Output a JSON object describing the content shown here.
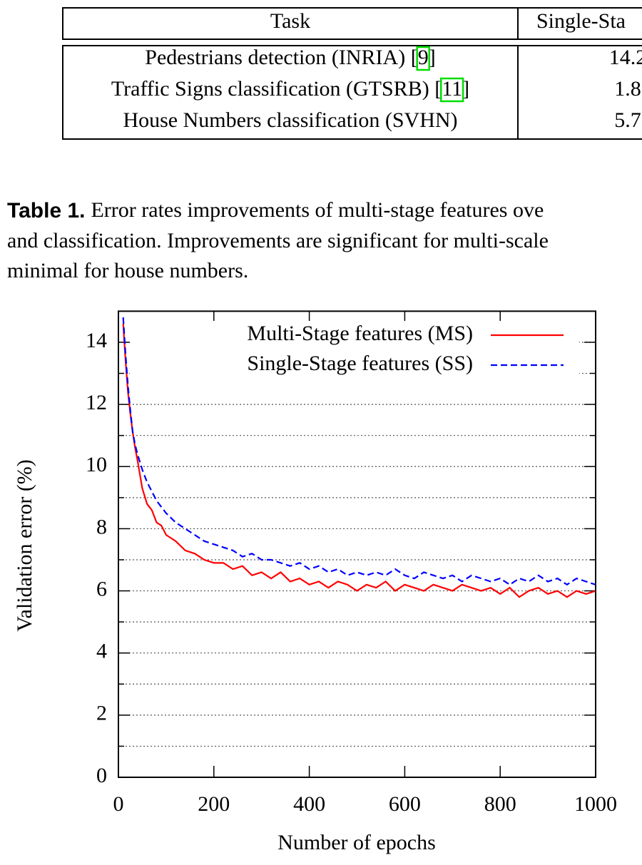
{
  "table": {
    "header": [
      "Task",
      "Single-Sta"
    ],
    "rows": [
      {
        "task": "Pedestrians detection (INRIA) [",
        "cite": "9",
        "after": "]",
        "value": "14.2"
      },
      {
        "task": "Traffic Signs classification (GTSRB) [",
        "cite": "11",
        "after": "]",
        "value": "1.8"
      },
      {
        "task": "House Numbers classification (SVHN)",
        "value": "5.7"
      }
    ]
  },
  "caption": {
    "label": "Table 1.",
    "lines": [
      "Error rates improvements of multi-stage features ove",
      "and classification. Improvements are significant for multi-scale",
      "minimal for house numbers."
    ]
  },
  "chart_data": {
    "type": "line",
    "xlabel": "Number of epochs",
    "ylabel": "Validation error (%)",
    "xlim": [
      0,
      1000
    ],
    "xticks": [
      0,
      200,
      400,
      600,
      800,
      1000
    ],
    "ylim": [
      0,
      15
    ],
    "yticks": [
      0,
      2,
      4,
      6,
      8,
      10,
      12,
      14
    ],
    "yminor_ticks": [
      1,
      3,
      5,
      7,
      9,
      11,
      13
    ],
    "grid": true,
    "legend": "top-right",
    "x": [
      10,
      15,
      20,
      25,
      30,
      35,
      40,
      50,
      60,
      70,
      80,
      90,
      100,
      120,
      140,
      160,
      180,
      200,
      220,
      240,
      260,
      280,
      300,
      320,
      340,
      360,
      380,
      400,
      420,
      440,
      460,
      480,
      500,
      520,
      540,
      560,
      580,
      600,
      620,
      640,
      660,
      680,
      700,
      720,
      740,
      760,
      780,
      800,
      820,
      840,
      860,
      880,
      900,
      920,
      940,
      960,
      980,
      1000
    ],
    "series": [
      {
        "name": "Multi-Stage features (MS)",
        "color": "#ff0000",
        "dash": false,
        "values": [
          14.6,
          13.4,
          12.4,
          11.7,
          11.1,
          10.6,
          10.2,
          9.3,
          8.8,
          8.6,
          8.2,
          8.1,
          7.8,
          7.6,
          7.3,
          7.2,
          7.0,
          6.9,
          6.9,
          6.7,
          6.8,
          6.5,
          6.6,
          6.4,
          6.6,
          6.3,
          6.4,
          6.2,
          6.3,
          6.1,
          6.3,
          6.2,
          6.0,
          6.2,
          6.1,
          6.3,
          6.0,
          6.2,
          6.1,
          6.0,
          6.2,
          6.1,
          6.0,
          6.2,
          6.1,
          6.0,
          6.1,
          5.9,
          6.1,
          5.8,
          6.0,
          6.1,
          5.9,
          6.0,
          5.8,
          6.0,
          5.9,
          6.0
        ]
      },
      {
        "name": "Single-Stage features (SS)",
        "color": "#0000ff",
        "dash": true,
        "values": [
          14.8,
          13.6,
          12.6,
          11.8,
          11.1,
          10.7,
          10.4,
          9.9,
          9.5,
          9.2,
          8.9,
          8.7,
          8.5,
          8.2,
          8.0,
          7.8,
          7.6,
          7.5,
          7.4,
          7.3,
          7.1,
          7.2,
          7.0,
          7.0,
          6.9,
          6.8,
          6.9,
          6.7,
          6.8,
          6.6,
          6.7,
          6.5,
          6.6,
          6.5,
          6.6,
          6.5,
          6.7,
          6.5,
          6.4,
          6.6,
          6.5,
          6.4,
          6.5,
          6.3,
          6.5,
          6.4,
          6.3,
          6.4,
          6.2,
          6.4,
          6.3,
          6.5,
          6.3,
          6.4,
          6.2,
          6.4,
          6.3,
          6.2
        ]
      }
    ]
  }
}
